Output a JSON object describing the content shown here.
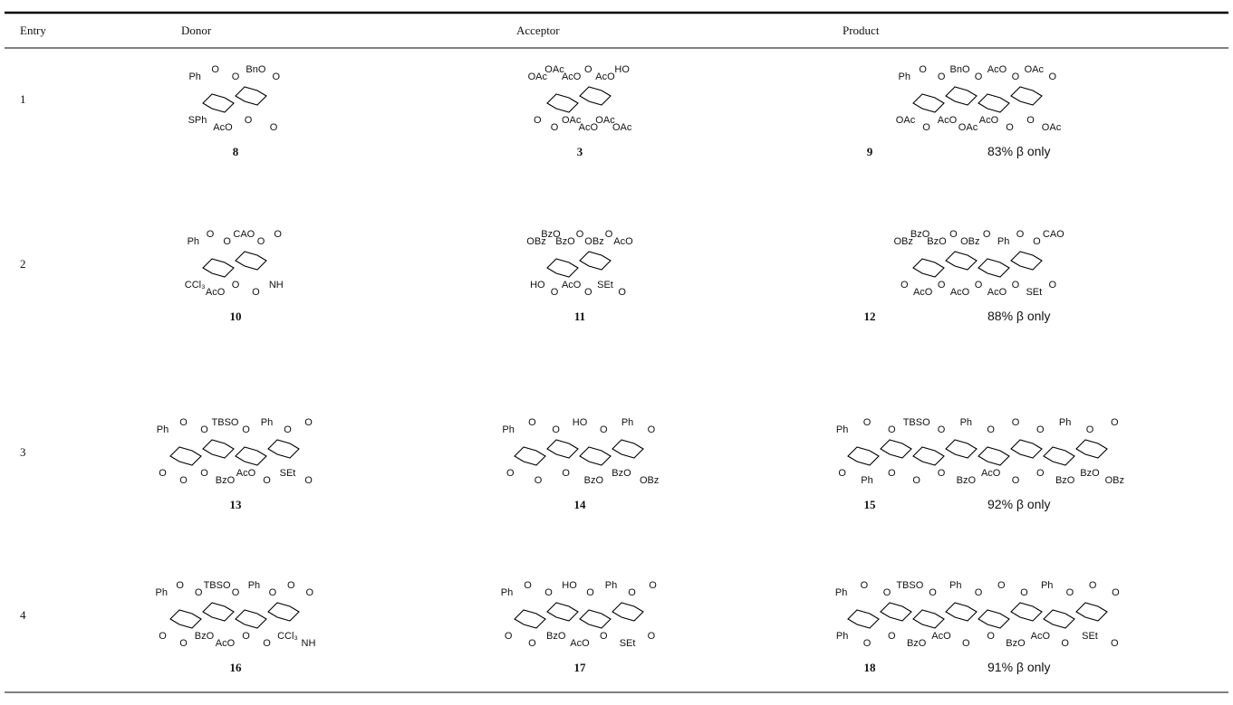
{
  "table": {
    "header": [
      "Entry",
      "Donor",
      "Acceptor",
      "Product"
    ],
    "rows": [
      {
        "entry": "1",
        "donor": {
          "id": "8",
          "labels": [
            "Ph",
            "O",
            "O",
            "BnO",
            "O",
            "SPh",
            "AcO",
            "O",
            "O"
          ]
        },
        "acceptor": {
          "id": "3",
          "labels": [
            "OAc",
            "OAc",
            "AcO",
            "O",
            "AcO",
            "HO",
            "O",
            "O",
            "OAc",
            "AcO",
            "OAc",
            "OAc"
          ]
        },
        "product": {
          "id": "9",
          "yield": "83% β only",
          "labels": [
            "Ph",
            "O",
            "O",
            "BnO",
            "O",
            "AcO",
            "O",
            "OAc",
            "O",
            "OAc",
            "O",
            "AcO",
            "OAc",
            "AcO",
            "O",
            "O",
            "OAc"
          ]
        }
      },
      {
        "entry": "2",
        "donor": {
          "id": "10",
          "labels": [
            "Ph",
            "O",
            "O",
            "CAO",
            "O",
            "O",
            "CCl₃",
            "AcO",
            "O",
            "O",
            "NH"
          ]
        },
        "acceptor": {
          "id": "11",
          "labels": [
            "OBz",
            "BzO",
            "BzO",
            "O",
            "OBz",
            "O",
            "AcO",
            "HO",
            "O",
            "AcO",
            "O",
            "SEt",
            "O"
          ]
        },
        "product": {
          "id": "12",
          "yield": "88% β only",
          "labels": [
            "OBz",
            "BzO",
            "BzO",
            "O",
            "OBz",
            "O",
            "Ph",
            "O",
            "O",
            "CAO",
            "O",
            "AcO",
            "O",
            "AcO",
            "O",
            "AcO",
            "O",
            "SEt",
            "O"
          ]
        }
      },
      {
        "entry": "3",
        "donor": {
          "id": "13",
          "labels": [
            "Ph",
            "O",
            "O",
            "TBSO",
            "O",
            "Ph",
            "O",
            "O",
            "O",
            "O",
            "O",
            "BzO",
            "AcO",
            "O",
            "SEt",
            "O"
          ]
        },
        "acceptor": {
          "id": "14",
          "labels": [
            "Ph",
            "O",
            "O",
            "HO",
            "O",
            "Ph",
            "O",
            "O",
            "O",
            "O",
            "BzO",
            "BzO",
            "OBz"
          ]
        },
        "product": {
          "id": "15",
          "yield": "92% β only",
          "labels": [
            "Ph",
            "O",
            "O",
            "TBSO",
            "O",
            "Ph",
            "O",
            "O",
            "O",
            "Ph",
            "O",
            "O",
            "O",
            "Ph",
            "O",
            "O",
            "O",
            "BzO",
            "AcO",
            "O",
            "O",
            "BzO",
            "BzO",
            "OBz"
          ]
        }
      },
      {
        "entry": "4",
        "donor": {
          "id": "16",
          "labels": [
            "Ph",
            "O",
            "O",
            "TBSO",
            "O",
            "Ph",
            "O",
            "O",
            "O",
            "O",
            "O",
            "BzO",
            "AcO",
            "O",
            "O",
            "CCl₃",
            "NH"
          ]
        },
        "acceptor": {
          "id": "17",
          "labels": [
            "Ph",
            "O",
            "O",
            "HO",
            "O",
            "Ph",
            "O",
            "O",
            "O",
            "O",
            "BzO",
            "AcO",
            "O",
            "SEt",
            "O"
          ]
        },
        "product": {
          "id": "18",
          "yield": "91% β only",
          "labels": [
            "Ph",
            "O",
            "O",
            "TBSO",
            "O",
            "Ph",
            "O",
            "O",
            "O",
            "Ph",
            "O",
            "O",
            "O",
            "Ph",
            "O",
            "O",
            "BzO",
            "AcO",
            "O",
            "O",
            "BzO",
            "AcO",
            "O",
            "SEt",
            "O"
          ]
        }
      }
    ]
  }
}
